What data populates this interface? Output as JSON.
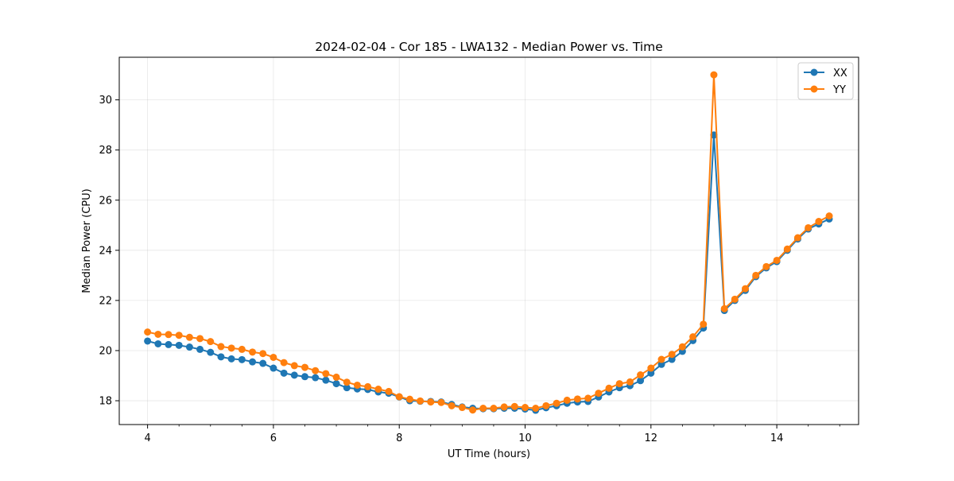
{
  "chart_data": {
    "type": "line",
    "title": "2024-02-04 - Cor 185 - LWA132 - Median Power vs. Time",
    "xlabel": "UT Time (hours)",
    "ylabel": "Median Power (CPU)",
    "xlim": [
      3.55,
      15.3
    ],
    "ylim": [
      17.05,
      31.7
    ],
    "xticks": [
      4,
      6,
      8,
      10,
      12,
      14
    ],
    "yticks": [
      18,
      20,
      22,
      24,
      26,
      28,
      30
    ],
    "xtick_labels": [
      "4",
      "6",
      "8",
      "10",
      "12",
      "14"
    ],
    "ytick_labels": [
      "18",
      "20",
      "22",
      "24",
      "26",
      "28",
      "30"
    ],
    "grid": true,
    "legend_position": "top-right",
    "x": [
      4.0,
      4.167,
      4.333,
      4.5,
      4.667,
      4.833,
      5.0,
      5.167,
      5.333,
      5.5,
      5.667,
      5.833,
      6.0,
      6.167,
      6.333,
      6.5,
      6.667,
      6.833,
      7.0,
      7.167,
      7.333,
      7.5,
      7.667,
      7.833,
      8.0,
      8.167,
      8.333,
      8.5,
      8.667,
      8.833,
      9.0,
      9.167,
      9.333,
      9.5,
      9.667,
      9.833,
      10.0,
      10.167,
      10.333,
      10.5,
      10.667,
      10.833,
      11.0,
      11.167,
      11.333,
      11.5,
      11.667,
      11.833,
      12.0,
      12.167,
      12.333,
      12.5,
      12.667,
      12.833,
      13.0,
      13.167,
      13.333,
      13.5,
      13.667,
      13.833,
      14.0,
      14.167,
      14.333,
      14.5,
      14.667,
      14.833
    ],
    "series": [
      {
        "name": "XX",
        "color": "#1f77b4",
        "values": [
          20.38,
          20.27,
          20.24,
          20.21,
          20.14,
          20.05,
          19.93,
          19.75,
          19.67,
          19.64,
          19.55,
          19.49,
          19.3,
          19.1,
          19.02,
          18.96,
          18.92,
          18.82,
          18.68,
          18.52,
          18.47,
          18.45,
          18.35,
          18.3,
          18.15,
          18.0,
          17.98,
          17.97,
          17.95,
          17.85,
          17.75,
          17.7,
          17.68,
          17.68,
          17.7,
          17.7,
          17.67,
          17.62,
          17.72,
          17.8,
          17.9,
          17.95,
          17.97,
          18.15,
          18.35,
          18.52,
          18.6,
          18.8,
          19.1,
          19.45,
          19.65,
          19.97,
          20.4,
          20.9,
          28.6,
          21.6,
          22.0,
          22.4,
          22.95,
          23.3,
          23.55,
          24.0,
          24.45,
          24.85,
          25.05,
          25.25
        ]
      },
      {
        "name": "YY",
        "color": "#ff7f0e",
        "values": [
          20.74,
          20.65,
          20.64,
          20.61,
          20.53,
          20.48,
          20.36,
          20.16,
          20.1,
          20.05,
          19.94,
          19.88,
          19.73,
          19.52,
          19.4,
          19.33,
          19.2,
          19.08,
          18.94,
          18.74,
          18.62,
          18.56,
          18.46,
          18.37,
          18.16,
          18.06,
          17.99,
          17.95,
          17.93,
          17.8,
          17.73,
          17.63,
          17.7,
          17.7,
          17.75,
          17.77,
          17.73,
          17.7,
          17.8,
          17.9,
          18.02,
          18.07,
          18.1,
          18.3,
          18.5,
          18.68,
          18.75,
          19.03,
          19.3,
          19.65,
          19.85,
          20.15,
          20.55,
          21.05,
          31.0,
          21.67,
          22.05,
          22.47,
          23.0,
          23.35,
          23.6,
          24.05,
          24.5,
          24.9,
          25.15,
          25.37
        ]
      }
    ]
  }
}
